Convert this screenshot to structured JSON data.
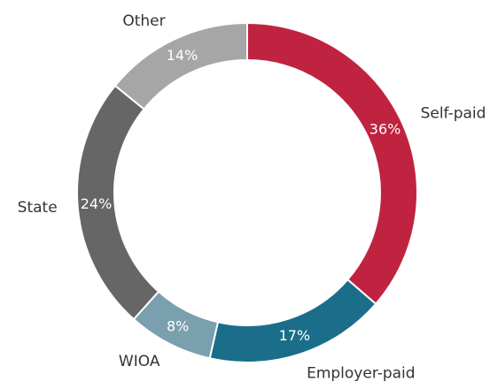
{
  "chart_data": {
    "type": "donut",
    "categories": [
      "Self-paid",
      "Employer-paid",
      "WIOA",
      "State",
      "Other"
    ],
    "values": [
      36,
      17,
      8,
      24,
      14
    ],
    "value_labels": [
      "36%",
      "17%",
      "8%",
      "24%",
      "14%"
    ],
    "colors": [
      "#c0233f",
      "#1a6e8a",
      "#7a9fae",
      "#666666",
      "#a6a6a6"
    ]
  }
}
